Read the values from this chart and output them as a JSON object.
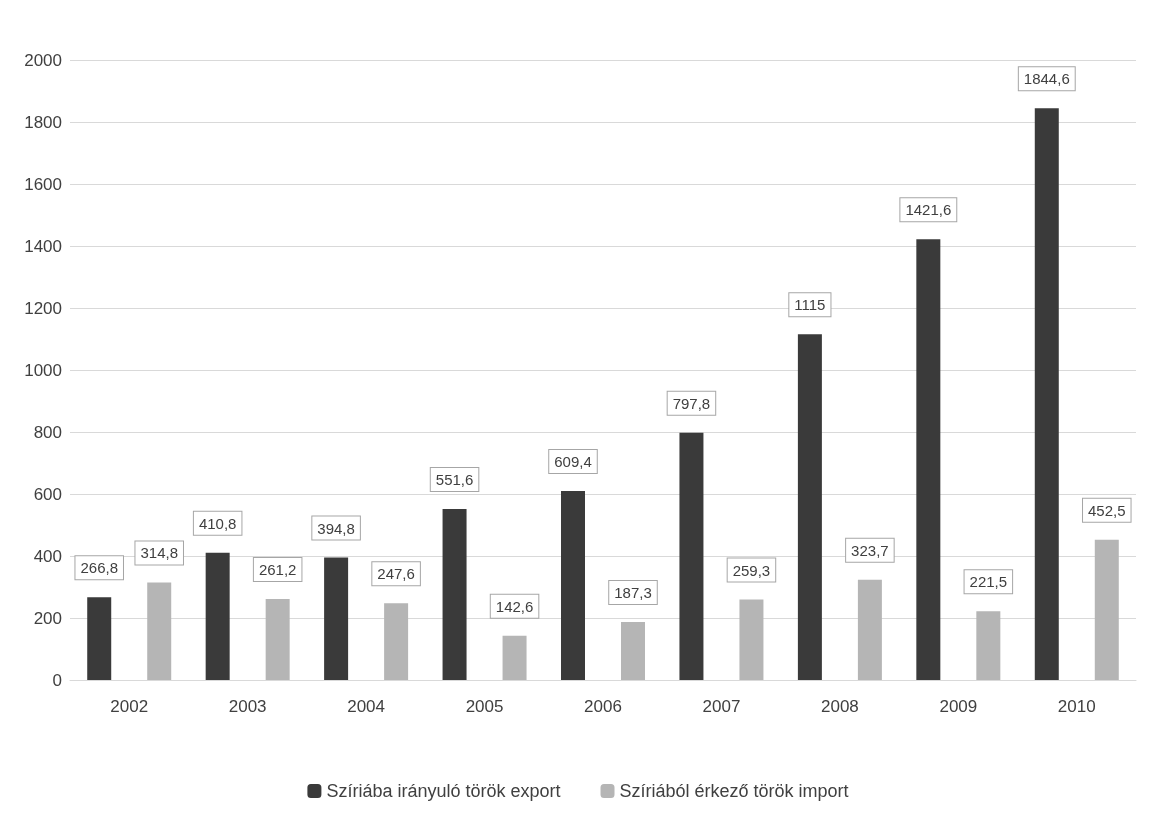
{
  "chart_data": {
    "type": "bar",
    "categories": [
      "2002",
      "2003",
      "2004",
      "2005",
      "2006",
      "2007",
      "2008",
      "2009",
      "2010"
    ],
    "series": [
      {
        "name": "Szíriába irányuló török export",
        "color": "#3a3a3a",
        "values": [
          266.8,
          410.8,
          394.8,
          551.6,
          609.4,
          797.8,
          1115,
          1421.6,
          1844.6
        ],
        "value_labels": [
          "266,8",
          "410,8",
          "394,8",
          "551,6",
          "609,4",
          "797,8",
          "1115",
          "1421,6",
          "1844,6"
        ]
      },
      {
        "name": "Szíriából érkező török import",
        "color": "#b5b5b5",
        "values": [
          314.8,
          261.2,
          247.6,
          142.6,
          187.3,
          259.3,
          323.7,
          221.5,
          452.5
        ],
        "value_labels": [
          "314,8",
          "261,2",
          "247,6",
          "142,6",
          "187,3",
          "259,3",
          "323,7",
          "221,5",
          "452,5"
        ]
      }
    ],
    "ylim": [
      0,
      2000
    ],
    "yticks": [
      0,
      200,
      400,
      600,
      800,
      1000,
      1200,
      1400,
      1600,
      1800,
      2000
    ],
    "grid": "y",
    "legend": "bottom"
  }
}
